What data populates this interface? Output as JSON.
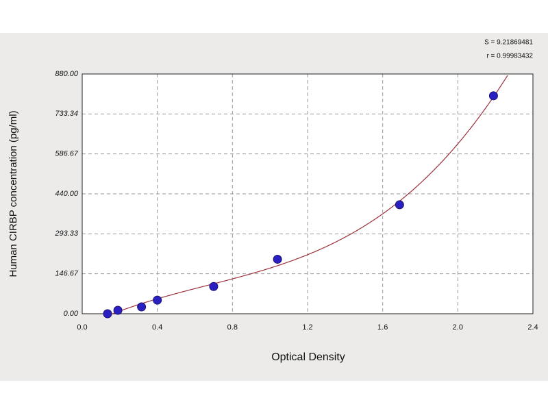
{
  "chart_data": {
    "type": "scatter",
    "x_label": "Optical Density",
    "y_label": "Human CIRBP concentration (pg/ml)",
    "annotations": [
      "S = 9.21869481",
      "r = 0.99983432"
    ],
    "x": [
      0.135,
      0.19,
      0.316,
      0.4,
      0.7,
      1.04,
      1.69,
      2.19
    ],
    "values": [
      0,
      12.5,
      25,
      50,
      100,
      200,
      400,
      800
    ],
    "color": "#2a1fc0",
    "curve_color": "#9b2f3a",
    "xlim": [
      0,
      2.4
    ],
    "xticks": [
      {
        "value": 0,
        "label": "0.0"
      },
      {
        "value": 0.4,
        "label": "0.4"
      },
      {
        "value": 0.8,
        "label": "0.8"
      },
      {
        "value": 1.2,
        "label": "1.2"
      },
      {
        "value": 1.6,
        "label": "1.6"
      },
      {
        "value": 2.0,
        "label": "2.0"
      },
      {
        "value": 2.4,
        "label": "2.4"
      }
    ],
    "ylim": [
      0,
      880
    ],
    "yticks": [
      {
        "value": 0,
        "label": "0.00"
      },
      {
        "value": 146.67,
        "label": "146.67"
      },
      {
        "value": 293.33,
        "label": "293.33"
      },
      {
        "value": 440,
        "label": "440.00"
      },
      {
        "value": 586.67,
        "label": "586.67"
      },
      {
        "value": 733.34,
        "label": "733.34"
      },
      {
        "value": 880,
        "label": "880.00"
      }
    ],
    "grid": true
  }
}
